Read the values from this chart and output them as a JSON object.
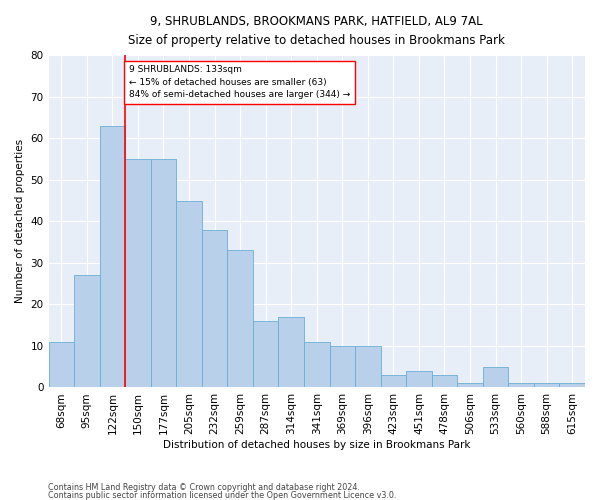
{
  "title1": "9, SHRUBLANDS, BROOKMANS PARK, HATFIELD, AL9 7AL",
  "title2": "Size of property relative to detached houses in Brookmans Park",
  "xlabel": "Distribution of detached houses by size in Brookmans Park",
  "ylabel": "Number of detached properties",
  "categories": [
    "68sqm",
    "95sqm",
    "122sqm",
    "150sqm",
    "177sqm",
    "205sqm",
    "232sqm",
    "259sqm",
    "287sqm",
    "314sqm",
    "341sqm",
    "369sqm",
    "396sqm",
    "423sqm",
    "451sqm",
    "478sqm",
    "506sqm",
    "533sqm",
    "560sqm",
    "588sqm",
    "615sqm"
  ],
  "values": [
    11,
    27,
    63,
    55,
    55,
    45,
    38,
    33,
    16,
    17,
    11,
    10,
    10,
    3,
    4,
    3,
    1,
    5,
    1,
    1,
    1
  ],
  "bar_color": "#b8d0ea",
  "bar_edge_color": "#6aaed6",
  "vline_color": "red",
  "vline_index": 2,
  "annotation_text1": "9 SHRUBLANDS: 133sqm",
  "annotation_text2": "← 15% of detached houses are smaller (63)",
  "annotation_text3": "84% of semi-detached houses are larger (344) →",
  "annotation_box_color": "white",
  "annotation_box_edge": "red",
  "ylim": [
    0,
    80
  ],
  "yticks": [
    0,
    10,
    20,
    30,
    40,
    50,
    60,
    70,
    80
  ],
  "background_color": "#e8eef8",
  "footer1": "Contains HM Land Registry data © Crown copyright and database right 2024.",
  "footer2": "Contains public sector information licensed under the Open Government Licence v3.0."
}
